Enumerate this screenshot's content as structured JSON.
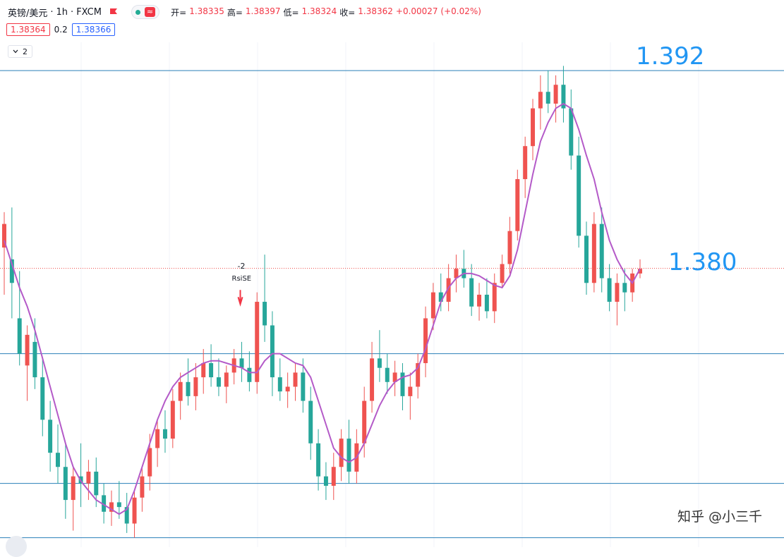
{
  "header": {
    "symbol": "英镑/美元",
    "interval": "1h",
    "exchange": "FXCM",
    "ohlc": [
      {
        "label": "开=",
        "value": "1.38335"
      },
      {
        "label": "高=",
        "value": "1.38397"
      },
      {
        "label": "低=",
        "value": "1.38324"
      },
      {
        "label": "收=",
        "value": "1.38362"
      }
    ],
    "change": "+0.00027 (+0.02%)",
    "bid": "1.38364",
    "spread": "0.2",
    "ask": "1.38366",
    "indicator_count": "2"
  },
  "colors": {
    "up": "#ef5350",
    "down": "#26a69a",
    "ma": "#b45ac8",
    "hline": "#2a7fb8",
    "label": "#2196f3"
  },
  "annotations": {
    "rsi_count": "-2",
    "rsi_label": "RsiSE"
  },
  "watermark": "知乎 @小三千",
  "chart_data": {
    "type": "candlestick",
    "title": "英镑/美元 · 1h · FXCM",
    "horizontal_lines": [
      1.392,
      1.38,
      1.3745,
      1.3722
    ],
    "horizontal_line_labels": [
      "1.392",
      "1.380"
    ],
    "current_price": 1.38362,
    "ylim": [
      1.3718,
      1.3932
    ],
    "candles": [
      [
        1.3845,
        1.386,
        1.3825,
        1.3855
      ],
      [
        1.384,
        1.3862,
        1.3815,
        1.383
      ],
      [
        1.3815,
        1.3835,
        1.3795,
        1.38
      ],
      [
        1.3795,
        1.3812,
        1.378,
        1.3808
      ],
      [
        1.3805,
        1.3815,
        1.3785,
        1.379
      ],
      [
        1.379,
        1.3798,
        1.3765,
        1.3772
      ],
      [
        1.3772,
        1.378,
        1.375,
        1.3758
      ],
      [
        1.3758,
        1.377,
        1.3745,
        1.3752
      ],
      [
        1.3752,
        1.3762,
        1.373,
        1.3738
      ],
      [
        1.3738,
        1.3752,
        1.3725,
        1.3748
      ],
      [
        1.3748,
        1.3762,
        1.3735,
        1.3745
      ],
      [
        1.3745,
        1.3755,
        1.3738,
        1.375
      ],
      [
        1.375,
        1.3756,
        1.3735,
        1.374
      ],
      [
        1.374,
        1.3745,
        1.3728,
        1.3733
      ],
      [
        1.3733,
        1.3742,
        1.3727,
        1.3737
      ],
      [
        1.3737,
        1.3746,
        1.373,
        1.3735
      ],
      [
        1.3735,
        1.3741,
        1.3724,
        1.3728
      ],
      [
        1.3728,
        1.3742,
        1.3722,
        1.3739
      ],
      [
        1.3739,
        1.3752,
        1.3733,
        1.3748
      ],
      [
        1.3748,
        1.3766,
        1.3742,
        1.376
      ],
      [
        1.376,
        1.3772,
        1.3752,
        1.3768
      ],
      [
        1.3768,
        1.3776,
        1.3758,
        1.3764
      ],
      [
        1.3764,
        1.3785,
        1.376,
        1.378
      ],
      [
        1.378,
        1.3792,
        1.3772,
        1.3788
      ],
      [
        1.3788,
        1.3798,
        1.3778,
        1.3782
      ],
      [
        1.3782,
        1.3796,
        1.3776,
        1.379
      ],
      [
        1.379,
        1.3802,
        1.3783,
        1.3796
      ],
      [
        1.3796,
        1.3804,
        1.3786,
        1.379
      ],
      [
        1.379,
        1.3798,
        1.3782,
        1.3786
      ],
      [
        1.3786,
        1.3795,
        1.3779,
        1.3792
      ],
      [
        1.3792,
        1.3802,
        1.3787,
        1.3798
      ],
      [
        1.3798,
        1.3805,
        1.3788,
        1.3794
      ],
      [
        1.3794,
        1.3801,
        1.3784,
        1.3788
      ],
      [
        1.3788,
        1.3826,
        1.3783,
        1.3822
      ],
      [
        1.3822,
        1.3842,
        1.3805,
        1.3812
      ],
      [
        1.3812,
        1.3818,
        1.3782,
        1.379
      ],
      [
        1.379,
        1.3798,
        1.378,
        1.3784
      ],
      [
        1.3784,
        1.3792,
        1.3777,
        1.3786
      ],
      [
        1.3786,
        1.3796,
        1.378,
        1.3792
      ],
      [
        1.3792,
        1.3798,
        1.3775,
        1.378
      ],
      [
        1.378,
        1.3786,
        1.3755,
        1.3762
      ],
      [
        1.3762,
        1.3768,
        1.3742,
        1.3748
      ],
      [
        1.3748,
        1.3754,
        1.3738,
        1.3744
      ],
      [
        1.3744,
        1.3758,
        1.3738,
        1.3752
      ],
      [
        1.3752,
        1.3768,
        1.3746,
        1.3764
      ],
      [
        1.3764,
        1.3772,
        1.3745,
        1.375
      ],
      [
        1.375,
        1.3768,
        1.3745,
        1.3762
      ],
      [
        1.3762,
        1.3786,
        1.3756,
        1.378
      ],
      [
        1.378,
        1.3805,
        1.3775,
        1.3798
      ],
      [
        1.3798,
        1.381,
        1.3788,
        1.3794
      ],
      [
        1.3794,
        1.38,
        1.3783,
        1.3788
      ],
      [
        1.3788,
        1.3797,
        1.3782,
        1.3792
      ],
      [
        1.3792,
        1.3796,
        1.3776,
        1.3782
      ],
      [
        1.3782,
        1.3792,
        1.3772,
        1.3786
      ],
      [
        1.3786,
        1.38,
        1.3781,
        1.3796
      ],
      [
        1.3796,
        1.382,
        1.379,
        1.3815
      ],
      [
        1.3815,
        1.383,
        1.381,
        1.3826
      ],
      [
        1.3826,
        1.3834,
        1.3818,
        1.3822
      ],
      [
        1.3822,
        1.3838,
        1.3818,
        1.3832
      ],
      [
        1.3832,
        1.3842,
        1.3826,
        1.3836
      ],
      [
        1.3836,
        1.3844,
        1.3828,
        1.3832
      ],
      [
        1.3832,
        1.3838,
        1.3816,
        1.382
      ],
      [
        1.382,
        1.383,
        1.3814,
        1.3825
      ],
      [
        1.3825,
        1.3832,
        1.3815,
        1.3818
      ],
      [
        1.3818,
        1.3834,
        1.3813,
        1.383
      ],
      [
        1.383,
        1.3842,
        1.3828,
        1.3838
      ],
      [
        1.3838,
        1.3858,
        1.3834,
        1.3852
      ],
      [
        1.3852,
        1.3878,
        1.3848,
        1.3874
      ],
      [
        1.3874,
        1.3892,
        1.3866,
        1.3888
      ],
      [
        1.3888,
        1.3908,
        1.3882,
        1.3904
      ],
      [
        1.3904,
        1.3918,
        1.3895,
        1.3911
      ],
      [
        1.3911,
        1.392,
        1.3902,
        1.3906
      ],
      [
        1.3906,
        1.3918,
        1.3898,
        1.3914
      ],
      [
        1.3914,
        1.3922,
        1.3898,
        1.3904
      ],
      [
        1.3904,
        1.3912,
        1.3878,
        1.3884
      ],
      [
        1.3884,
        1.3892,
        1.3845,
        1.385
      ],
      [
        1.385,
        1.3856,
        1.3825,
        1.383
      ],
      [
        1.383,
        1.386,
        1.3826,
        1.3855
      ],
      [
        1.3855,
        1.3862,
        1.3826,
        1.3832
      ],
      [
        1.3832,
        1.3838,
        1.3818,
        1.3822
      ],
      [
        1.3822,
        1.3834,
        1.3812,
        1.383
      ],
      [
        1.383,
        1.3836,
        1.3818,
        1.3826
      ],
      [
        1.3826,
        1.3836,
        1.3822,
        1.3834
      ],
      [
        1.3834,
        1.384,
        1.3832,
        1.3836
      ]
    ],
    "moving_average": {
      "name": "MA",
      "values": [
        1.3848,
        1.3838,
        1.3828,
        1.382,
        1.381,
        1.3798,
        1.3786,
        1.3774,
        1.3762,
        1.3752,
        1.3746,
        1.3742,
        1.3738,
        1.3736,
        1.3734,
        1.3732,
        1.3734,
        1.3742,
        1.3752,
        1.3762,
        1.3772,
        1.378,
        1.3786,
        1.379,
        1.3792,
        1.3794,
        1.3796,
        1.3797,
        1.3797,
        1.3796,
        1.3795,
        1.3794,
        1.3792,
        1.3792,
        1.3797,
        1.38,
        1.38,
        1.3798,
        1.3796,
        1.3795,
        1.379,
        1.378,
        1.377,
        1.376,
        1.3756,
        1.3754,
        1.3756,
        1.3762,
        1.377,
        1.3778,
        1.3784,
        1.3788,
        1.379,
        1.3791,
        1.3794,
        1.3802,
        1.3812,
        1.3822,
        1.3828,
        1.3832,
        1.3834,
        1.3834,
        1.3833,
        1.3831,
        1.3829,
        1.3828,
        1.3833,
        1.3844,
        1.386,
        1.3876,
        1.389,
        1.3898,
        1.3904,
        1.3906,
        1.3904,
        1.3895,
        1.3884,
        1.3874,
        1.386,
        1.3848,
        1.384,
        1.3834,
        1.383,
        1.3836
      ]
    }
  }
}
